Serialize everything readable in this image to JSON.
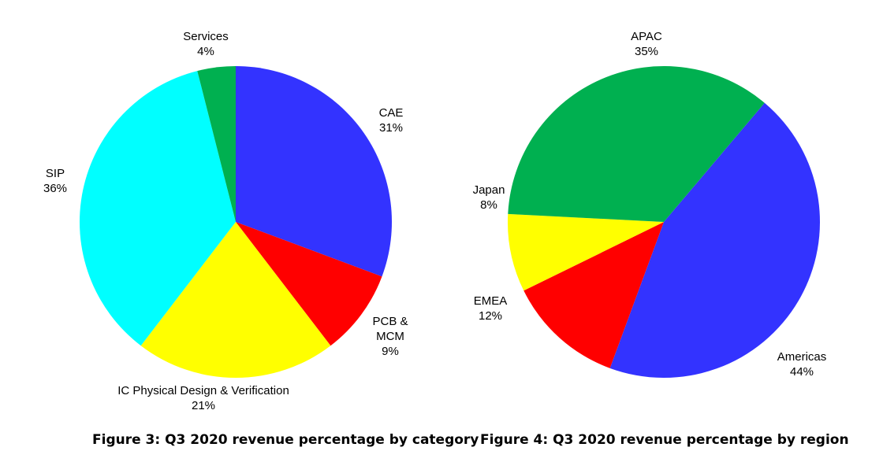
{
  "chart_data": [
    {
      "type": "pie",
      "caption": "Figure 3: Q3 2020 revenue percentage by category",
      "slices": [
        {
          "label": "CAE",
          "value": 31,
          "value_text": "31%",
          "color": "#3333ff"
        },
        {
          "label": "PCB & MCM",
          "label_lines": [
            "PCB &",
            "MCM"
          ],
          "value": 9,
          "value_text": "9%",
          "color": "#ff0000"
        },
        {
          "label": "IC Physical Design & Verification",
          "value": 21,
          "value_text": "21%",
          "color": "#ffff00"
        },
        {
          "label": "SIP",
          "value": 36,
          "value_text": "36%",
          "color": "#00ffff"
        },
        {
          "label": "Services",
          "value": 4,
          "value_text": "4%",
          "color": "#00b050"
        }
      ]
    },
    {
      "type": "pie",
      "caption": "Figure 4: Q3 2020 revenue percentage by region",
      "slices": [
        {
          "label": "Americas",
          "value": 44,
          "value_text": "44%",
          "color": "#3333ff"
        },
        {
          "label": "EMEA",
          "value": 12,
          "value_text": "12%",
          "color": "#ff0000"
        },
        {
          "label": "Japan",
          "value": 8,
          "value_text": "8%",
          "color": "#ffff00"
        },
        {
          "label": "APAC",
          "value": 35,
          "value_text": "35%",
          "color": "#00b050"
        }
      ]
    }
  ]
}
